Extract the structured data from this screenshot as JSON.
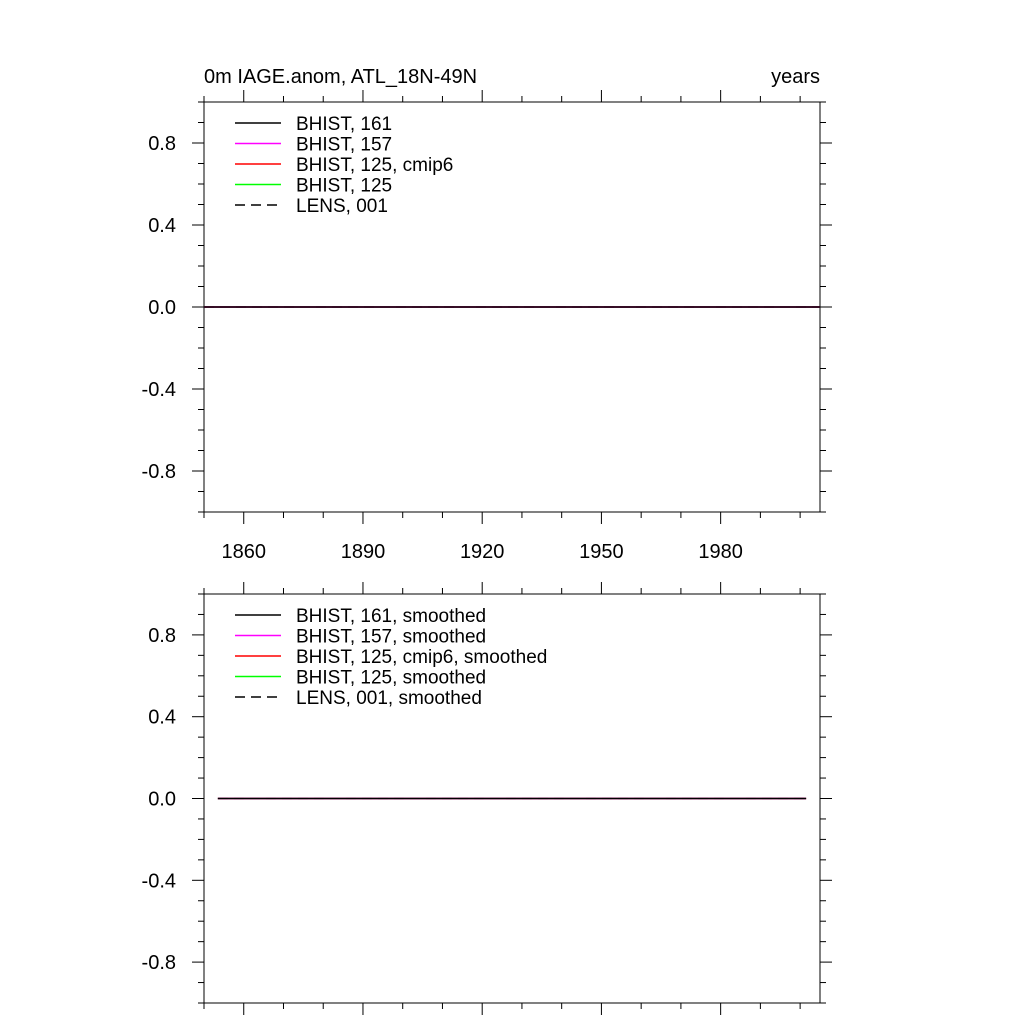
{
  "chart_data": [
    {
      "type": "line",
      "title": "0m IAGE.anom, ATL_18N-49N",
      "title_right": "years",
      "xlabel": "",
      "ylabel": "",
      "xlim": [
        1850,
        2005
      ],
      "ylim": [
        -1.0,
        1.0
      ],
      "x_ticks": [
        1860,
        1890,
        1920,
        1950,
        1980
      ],
      "y_ticks": [
        "0.8",
        "0.4",
        "0.0",
        "-0.4",
        "-0.8"
      ],
      "show_x_tick_labels": true,
      "grid": false,
      "legend_position": "top-left",
      "series": [
        {
          "name": "BHIST, 161",
          "color": "#000000",
          "dash": "solid",
          "x": [
            1850,
            2005
          ],
          "values": [
            0.0,
            0.0
          ]
        },
        {
          "name": "BHIST, 157",
          "color": "#ff00ff",
          "dash": "solid",
          "x": [
            1850,
            2005
          ],
          "values": [
            0.0,
            0.0
          ]
        },
        {
          "name": "BHIST, 125, cmip6",
          "color": "#ff0000",
          "dash": "solid",
          "x": [
            1850,
            2005
          ],
          "values": [
            0.0,
            0.0
          ]
        },
        {
          "name": "BHIST, 125",
          "color": "#00ff00",
          "dash": "solid",
          "x": [
            1850,
            2005
          ],
          "values": [
            0.0,
            0.0
          ]
        },
        {
          "name": "LENS, 001",
          "color": "#000000",
          "dash": "dashed",
          "x": [
            1850,
            2005
          ],
          "values": [
            0.0,
            0.0
          ]
        }
      ]
    },
    {
      "type": "line",
      "title": "",
      "xlabel": "",
      "ylabel": "",
      "xlim": [
        1850,
        2005
      ],
      "ylim": [
        -1.0,
        1.0
      ],
      "x_ticks": [
        1860,
        1890,
        1920,
        1950,
        1980
      ],
      "y_ticks": [
        "0.8",
        "0.4",
        "0.0",
        "-0.4",
        "-0.8"
      ],
      "show_x_tick_labels": false,
      "grid": false,
      "legend_position": "top-left",
      "series": [
        {
          "name": "BHIST, 161, smoothed",
          "color": "#000000",
          "dash": "solid",
          "x": [
            1853.5,
            2001.5
          ],
          "values": [
            0.0,
            0.0
          ]
        },
        {
          "name": "BHIST, 157, smoothed",
          "color": "#ff00ff",
          "dash": "solid",
          "x": [
            1853.5,
            2001.5
          ],
          "values": [
            0.0,
            0.0
          ]
        },
        {
          "name": "BHIST, 125, cmip6, smoothed",
          "color": "#ff0000",
          "dash": "solid",
          "x": [
            1853.5,
            2001.5
          ],
          "values": [
            0.0,
            0.0
          ]
        },
        {
          "name": "BHIST, 125, smoothed",
          "color": "#00ff00",
          "dash": "solid",
          "x": [
            1853.5,
            2001.5
          ],
          "values": [
            0.0,
            0.0
          ]
        },
        {
          "name": "LENS, 001, smoothed",
          "color": "#000000",
          "dash": "dashed",
          "x": [
            1853.5,
            2001.5
          ],
          "values": [
            0.0,
            0.0
          ]
        }
      ]
    }
  ]
}
